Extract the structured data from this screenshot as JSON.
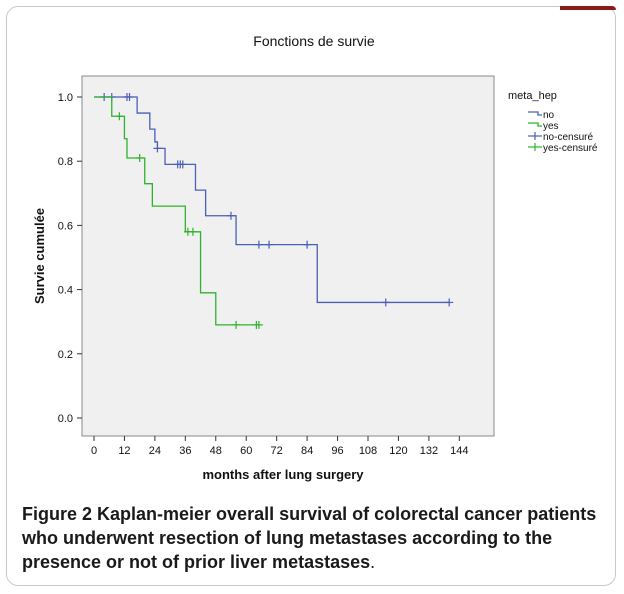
{
  "chart_data": {
    "type": "line",
    "title": "Fonctions de survie",
    "xlabel": "months after lung surgery",
    "ylabel": "Survie cumulée",
    "x_ticks": [
      0,
      12,
      24,
      36,
      48,
      60,
      72,
      84,
      96,
      108,
      120,
      132,
      144
    ],
    "y_ticks": [
      0.0,
      0.2,
      0.4,
      0.6,
      0.8,
      1.0
    ],
    "xlim": [
      0,
      144
    ],
    "ylim": [
      0,
      1.0
    ],
    "grid": false,
    "legend_title": "meta_hep",
    "legend_position": "top-right",
    "series": [
      {
        "name": "no",
        "color": "#4a5fb5",
        "step_x": [
          0,
          17,
          22,
          24,
          25,
          28,
          33,
          40,
          44,
          56,
          88,
          140
        ],
        "step_y": [
          1.0,
          0.95,
          0.9,
          0.86,
          0.84,
          0.79,
          0.79,
          0.71,
          0.63,
          0.54,
          0.36,
          0.36
        ],
        "censored_x": [
          4,
          7,
          13,
          14,
          25,
          33,
          34,
          35,
          54,
          65,
          69,
          84,
          115,
          140
        ],
        "censored_y": [
          1.0,
          1.0,
          1.0,
          1.0,
          0.84,
          0.79,
          0.79,
          0.79,
          0.63,
          0.54,
          0.54,
          0.54,
          0.36,
          0.36
        ]
      },
      {
        "name": "yes",
        "color": "#2db32d",
        "step_x": [
          0,
          7,
          12,
          13,
          20,
          23,
          36,
          42,
          48,
          65
        ],
        "step_y": [
          1.0,
          0.94,
          0.87,
          0.81,
          0.73,
          0.66,
          0.58,
          0.39,
          0.29,
          0.29
        ],
        "censored_x": [
          10,
          18,
          37,
          39,
          56,
          64,
          65
        ],
        "censored_y": [
          0.94,
          0.81,
          0.58,
          0.58,
          0.29,
          0.29,
          0.29
        ]
      }
    ],
    "legend_entries": [
      "no",
      "yes",
      "no-censuré",
      "yes-censuré"
    ]
  },
  "caption": {
    "bold": "Figure 2 Kaplan-meier overall survival of colorectal cancer patients who underwent resection of lung metastases according to the presence or not of prior liver metastases",
    "tail": "."
  }
}
